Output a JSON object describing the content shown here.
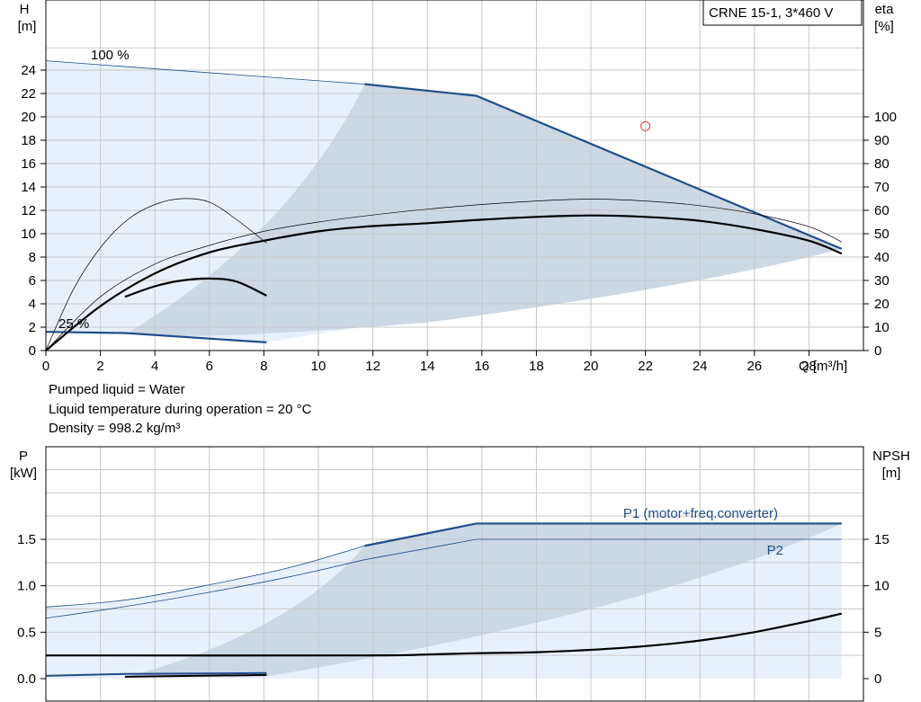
{
  "model_label": "CRNE 15-1, 3*460 V",
  "liquid_info": {
    "line1": "Pumped liquid = Water",
    "line2": "Liquid temperature during operation = 20 °C",
    "line3": "Density = 998.2 kg/m³"
  },
  "colors": {
    "grid": "#c8c8c8",
    "region_light": "#e8f1fb",
    "region_shade": "#ccd8e4",
    "pump_blue": "#1f4e89",
    "curve_black": "#000000",
    "duty_marker": "#e04040"
  },
  "chart_data": [
    {
      "type": "line",
      "xlabel": "Q [m³/h]",
      "ylabel": "H\n[m]",
      "y2label": "eta\n[%]",
      "xlim": [
        0,
        30
      ],
      "ylim": [
        0,
        26
      ],
      "y2lim": [
        0,
        130
      ],
      "x_ticks": [
        0,
        2,
        4,
        6,
        8,
        10,
        12,
        14,
        16,
        18,
        20,
        22,
        24,
        26,
        28
      ],
      "y_ticks": [
        0,
        2,
        4,
        6,
        8,
        10,
        12,
        14,
        16,
        18,
        20,
        22,
        24
      ],
      "y2_ticks": [
        0,
        10,
        20,
        30,
        40,
        50,
        60,
        70,
        80,
        90,
        100
      ],
      "annotations": [
        "100 %",
        "25 %"
      ],
      "grid": true,
      "series": [
        {
          "name": "",
          "role": "H 100% minimum speed range",
          "axis": "y",
          "x": [
            0,
            11.7
          ],
          "y": [
            24.8,
            22.8
          ]
        },
        {
          "name": "",
          "role": "H 100% operating",
          "axis": "y",
          "x": [
            11.7,
            15.8,
            29.2
          ],
          "y": [
            22.8,
            21.8,
            8.7
          ]
        },
        {
          "name": "",
          "role": "H 25%",
          "axis": "y",
          "x": [
            0,
            2.9,
            8.1
          ],
          "y": [
            1.6,
            1.5,
            0.7
          ]
        },
        {
          "name": "",
          "role": "eta 100%",
          "axis": "y2",
          "x": [
            0,
            2,
            4,
            6,
            8,
            10,
            11.7,
            14,
            16,
            18,
            20,
            22,
            24,
            26,
            28,
            29.2
          ],
          "y": [
            0,
            19,
            33,
            42,
            47,
            51,
            53,
            54.5,
            56,
            57.2,
            57.8,
            57.2,
            55.5,
            52,
            47,
            41.5
          ]
        },
        {
          "name": "",
          "role": "eta 100% motor+converter",
          "axis": "y2",
          "x": [
            0,
            2,
            4,
            6,
            8,
            10,
            12,
            14,
            16,
            18,
            20,
            22,
            24,
            26,
            28,
            29.2
          ],
          "y": [
            0,
            23,
            37,
            45,
            51,
            55,
            58,
            60.5,
            62.5,
            64,
            64.8,
            64,
            62,
            58.5,
            53,
            46.5
          ]
        },
        {
          "name": "",
          "role": "eta 25%",
          "axis": "y2",
          "x": [
            2.9,
            4,
            5,
            6,
            7,
            8.1
          ],
          "y": [
            23,
            27.5,
            30,
            30.8,
            29.5,
            23.5
          ]
        },
        {
          "name": "",
          "role": "eta 25% motor+converter",
          "axis": "y2",
          "x": [
            0,
            1,
            2,
            3,
            4,
            5,
            6,
            7,
            8.1
          ],
          "y": [
            0,
            26,
            44,
            56,
            62.5,
            65,
            63.5,
            56,
            46
          ]
        }
      ],
      "duty_point": {
        "x": 22,
        "y": 19.2
      }
    },
    {
      "type": "line",
      "xlabel": "",
      "ylabel": "P\n[kW]",
      "y2label": "NPSH\n[m]",
      "xlim": [
        0,
        30
      ],
      "ylim": [
        0,
        2.5
      ],
      "y2lim": [
        0,
        25
      ],
      "y_ticks": [
        0.0,
        0.5,
        1.0,
        1.5
      ],
      "y_tick_labels": [
        "0.0",
        "0.5",
        "1.0",
        "1.5"
      ],
      "y2_ticks": [
        0,
        5,
        10,
        15
      ],
      "grid": true,
      "series": [
        {
          "name": "P1 (motor+freq.converter)",
          "axis": "y",
          "x": [
            0,
            3,
            6,
            9,
            11.7,
            15.8,
            29.2
          ],
          "y": [
            0.77,
            0.85,
            1.01,
            1.2,
            1.43,
            1.67,
            1.67
          ]
        },
        {
          "name": "P2",
          "axis": "y",
          "x": [
            0,
            3,
            6,
            9,
            11.7,
            15.8,
            29.2
          ],
          "y": [
            0.65,
            0.78,
            0.93,
            1.1,
            1.28,
            1.5,
            1.5
          ]
        },
        {
          "name": "",
          "role": "P1 25%",
          "axis": "y",
          "x": [
            0,
            2.9,
            8.1
          ],
          "y": [
            0.03,
            0.05,
            0.06
          ]
        },
        {
          "name": "",
          "role": "P2 25%",
          "axis": "y",
          "x": [
            2.9,
            8.1
          ],
          "y": [
            0.02,
            0.04
          ]
        },
        {
          "name": "",
          "role": "NPSH",
          "axis": "y2",
          "x": [
            0,
            11.7,
            14,
            16,
            18,
            20,
            22,
            24,
            26,
            28,
            29.2
          ],
          "y": [
            2.5,
            2.5,
            2.6,
            2.75,
            2.85,
            3.1,
            3.5,
            4.1,
            5.0,
            6.2,
            7.0
          ]
        }
      ]
    }
  ]
}
